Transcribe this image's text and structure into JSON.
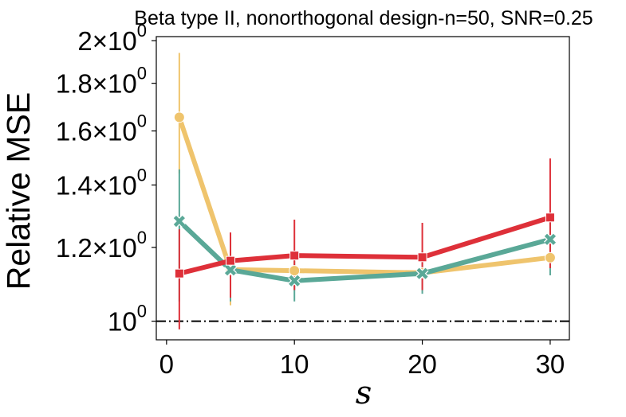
{
  "chart_data": {
    "type": "line",
    "title": "Beta type II, nonorthogonal design-n=50, SNR=0.25",
    "xlabel": "s",
    "ylabel": "Relative MSE",
    "yscale": "log",
    "x": [
      1,
      5,
      10,
      20,
      30
    ],
    "xlim": [
      -0.8,
      31.5
    ],
    "ylim": [
      0.955,
      2.02
    ],
    "xticks": [
      0,
      10,
      20,
      30
    ],
    "xtick_labels": [
      "0",
      "10",
      "20",
      "30"
    ],
    "yticks": [
      1.0,
      1.2,
      1.4,
      1.6,
      1.8,
      2.0
    ],
    "ytick_labels": [
      {
        "base": "10",
        "exp": "0"
      },
      {
        "base": "1.2×10",
        "exp": "0"
      },
      {
        "base": "1.4×10",
        "exp": "0"
      },
      {
        "base": "1.6×10",
        "exp": "0"
      },
      {
        "base": "1.8×10",
        "exp": "0"
      },
      {
        "base": "2×10",
        "exp": "0"
      }
    ],
    "reference_line": {
      "y": 1.0,
      "style": "dash-dot",
      "color": "#000000"
    },
    "series": [
      {
        "name": "series-circle",
        "marker": "circle",
        "color": "#EFC46D",
        "values": [
          1.655,
          1.136,
          1.133,
          1.127,
          1.17
        ],
        "err_low": [
          1.44,
          1.04,
          null,
          null,
          null
        ],
        "err_high": [
          1.94,
          1.23,
          null,
          null,
          null
        ]
      },
      {
        "name": "series-x",
        "marker": "x",
        "color": "#5AA897",
        "values": [
          1.28,
          1.135,
          1.105,
          1.125,
          1.224
        ],
        "err_low": [
          1.05,
          1.05,
          1.05,
          1.07,
          1.12
        ],
        "err_high": [
          1.455,
          1.23,
          1.16,
          1.19,
          1.29
        ]
      },
      {
        "name": "series-square",
        "marker": "square",
        "color": "#DE3039",
        "values": [
          1.125,
          1.161,
          1.176,
          1.171,
          1.292
        ],
        "err_low": [
          0.98,
          1.06,
          1.08,
          1.08,
          1.14
        ],
        "err_high": [
          1.255,
          1.245,
          1.285,
          1.275,
          1.495
        ]
      }
    ]
  }
}
